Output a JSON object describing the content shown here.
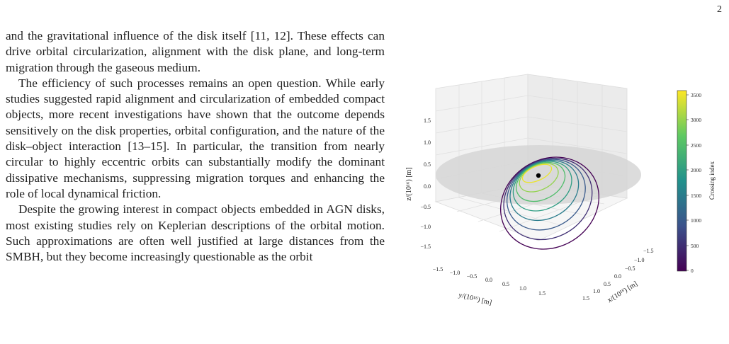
{
  "page": {
    "number": "2"
  },
  "text": {
    "paragraphs": [
      "and the gravitational influence of the disk itself [11, 12]. These effects can drive orbital circularization, alignment with the disk plane, and long-term migration through the gaseous medium.",
      "The efficiency of such processes remains an open question. While early studies suggested rapid alignment and circularization of embedded compact objects, more recent investigations have shown that the outcome depends sensitively on the disk properties, orbital configuration, and the nature of the disk–object interaction [13–15]. In particular, the transition from nearly circular to highly eccentric orbits can substantially modify the dominant dissipative mechanisms, suppressing migration torques and enhancing the role of local dynamical friction.",
      "Despite the growing interest in compact objects embedded in AGN disks, most existing studies rely on Keplerian descriptions of the orbital motion. Such approximations are often well justified at large distances from the SMBH, but they become increasingly questionable as the orbit"
    ]
  },
  "figure": {
    "z_label": "z/(10¹⁶) [m]",
    "y_label": "y/(10¹⁶) [m]",
    "x_label": "x/(10¹⁶) [m]",
    "z_ticks": [
      "1.5",
      "1.0",
      "0.5",
      "0.0",
      "−0.5",
      "−1.0",
      "−1.5"
    ],
    "y_ticks": [
      "−1.5",
      "−1.0",
      "−0.5",
      "0.0",
      "0.5",
      "1.0",
      "1.5"
    ],
    "x_ticks": [
      "−1.5",
      "−1.0",
      "−0.5",
      "0.0",
      "0.5",
      "1.0",
      "1.5"
    ],
    "colorbar": {
      "label": "Crossing index",
      "ticks": [
        "3500",
        "3000",
        "2500",
        "2000",
        "1500",
        "1000",
        "500",
        "0"
      ],
      "min": 0,
      "max": 3600,
      "colormap": [
        "#440154",
        "#3b528b",
        "#21918c",
        "#5ec962",
        "#fde725"
      ]
    },
    "orbit_crossing_indices": [
      0,
      500,
      1000,
      1500,
      2000,
      2500,
      3000,
      3500
    ],
    "central_mass_color": "#000000",
    "disk_color": "#d6d6d6"
  }
}
